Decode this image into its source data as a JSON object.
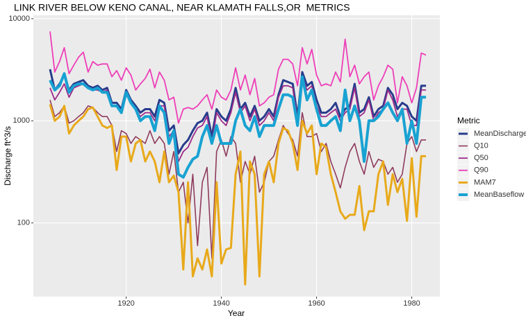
{
  "chart_data": {
    "type": "line",
    "title": "LINK RIVER BELOW KENO CANAL, NEAR KLAMATH FALLS,OR  METRICS",
    "x_label": "Year",
    "y_label": "Discharge ft^3/s",
    "legend_title": "Metric",
    "log_y": true,
    "grid": true,
    "legend": "right",
    "x": [
      1904,
      1905,
      1906,
      1907,
      1908,
      1909,
      1910,
      1911,
      1912,
      1913,
      1914,
      1915,
      1916,
      1917,
      1918,
      1919,
      1920,
      1921,
      1922,
      1923,
      1924,
      1925,
      1926,
      1927,
      1928,
      1929,
      1930,
      1931,
      1932,
      1933,
      1934,
      1935,
      1936,
      1937,
      1938,
      1939,
      1940,
      1941,
      1942,
      1943,
      1944,
      1945,
      1946,
      1947,
      1948,
      1949,
      1950,
      1951,
      1952,
      1953,
      1954,
      1955,
      1956,
      1957,
      1958,
      1959,
      1960,
      1961,
      1962,
      1963,
      1964,
      1965,
      1966,
      1967,
      1968,
      1969,
      1970,
      1971,
      1972,
      1973,
      1974,
      1975,
      1976,
      1977,
      1978,
      1979,
      1980,
      1981,
      1982,
      1983
    ],
    "xlim": [
      1900.5,
      1985.9
    ],
    "xticks": [
      1920,
      1940,
      1960,
      1980
    ],
    "ylim": [
      19,
      10800
    ],
    "yticks": [
      100,
      1000,
      10000
    ],
    "series": [
      {
        "name": "MeanDischarge",
        "color": "#283c8c",
        "values": [
          3200,
          2000,
          2300,
          2800,
          2000,
          2300,
          2400,
          2500,
          2200,
          2100,
          2200,
          2000,
          2100,
          1500,
          1500,
          1300,
          2000,
          1600,
          1400,
          1200,
          1300,
          1300,
          1100,
          1600,
          1500,
          800,
          900,
          480,
          580,
          650,
          800,
          950,
          1000,
          1200,
          700,
          1300,
          1100,
          1000,
          1300,
          2100,
          1300,
          1500,
          1100,
          1400,
          1000,
          1100,
          1300,
          1100,
          1800,
          2500,
          2400,
          2300,
          1100,
          3000,
          2200,
          2400,
          1600,
          1200,
          1200,
          1300,
          1500,
          1100,
          1300,
          1400,
          2300,
          1200,
          1300,
          1700,
          1100,
          1300,
          1400,
          2100,
          1800,
          1300,
          1500,
          1400,
          1100,
          1000,
          2200,
          2200
        ]
      },
      {
        "name": "Q10",
        "color": "#8e3a5c",
        "values": [
          1600,
          1100,
          1200,
          1400,
          950,
          1000,
          1100,
          1200,
          1400,
          1350,
          1200,
          1100,
          1100,
          900,
          500,
          800,
          750,
          600,
          700,
          650,
          600,
          800,
          600,
          700,
          600,
          300,
          500,
          200,
          250,
          100,
          300,
          60,
          250,
          350,
          45,
          500,
          650,
          450,
          700,
          600,
          250,
          400,
          300,
          450,
          200,
          250,
          400,
          450,
          650,
          900,
          750,
          650,
          450,
          1200,
          700,
          700,
          750,
          500,
          600,
          400,
          300,
          220,
          350,
          500,
          600,
          400,
          300,
          500,
          350,
          420,
          400,
          300,
          350,
          250,
          300,
          600,
          700,
          500,
          650,
          650
        ]
      },
      {
        "name": "Q50",
        "color": "#9c2a8a",
        "values": [
          2100,
          1600,
          1900,
          2300,
          1700,
          2100,
          2200,
          2300,
          2100,
          2000,
          2000,
          1900,
          2000,
          1400,
          1400,
          1200,
          1900,
          1500,
          1300,
          1100,
          1200,
          1200,
          1000,
          1400,
          1400,
          700,
          800,
          400,
          500,
          550,
          700,
          850,
          900,
          1100,
          600,
          1200,
          1000,
          900,
          1200,
          1900,
          1200,
          1400,
          1000,
          1300,
          900,
          1000,
          1200,
          1000,
          1700,
          2200,
          2200,
          2100,
          1000,
          2700,
          2000,
          2200,
          1400,
          1100,
          1100,
          1200,
          1300,
          1000,
          1200,
          1300,
          2100,
          1100,
          1200,
          1600,
          1000,
          1200,
          1300,
          2000,
          1600,
          1100,
          1300,
          1300,
          900,
          900,
          2000,
          2000
        ]
      },
      {
        "name": "Q90",
        "color": "#ee3eb8",
        "values": [
          7500,
          3000,
          3800,
          5200,
          2900,
          3500,
          4200,
          4700,
          3000,
          3800,
          3500,
          3600,
          3600,
          2700,
          3100,
          2500,
          3300,
          2800,
          2000,
          2300,
          2600,
          3200,
          2100,
          3000,
          2500,
          1600,
          1700,
          950,
          1300,
          1350,
          1300,
          1400,
          1600,
          1800,
          1300,
          2000,
          1700,
          1600,
          2000,
          3300,
          2000,
          2800,
          1800,
          2600,
          1400,
          1500,
          1700,
          1800,
          3200,
          4000,
          4000,
          3600,
          2200,
          5200,
          3600,
          5000,
          2800,
          2200,
          2300,
          2200,
          3000,
          2400,
          6300,
          2700,
          3500,
          2300,
          2700,
          3000,
          1600,
          2200,
          2700,
          3500,
          3200,
          1500,
          2700,
          2200,
          1500,
          2100,
          4600,
          4400
        ]
      },
      {
        "name": "MAM7",
        "color": "#e8a91a",
        "values": [
          1450,
          1000,
          1100,
          1400,
          750,
          900,
          1000,
          1100,
          1300,
          1350,
          1100,
          900,
          850,
          900,
          330,
          700,
          700,
          400,
          600,
          650,
          400,
          500,
          400,
          250,
          500,
          250,
          290,
          200,
          35,
          250,
          30,
          45,
          35,
          55,
          30,
          250,
          40,
          55,
          57,
          300,
          500,
          25,
          400,
          300,
          30,
          300,
          400,
          250,
          600,
          850,
          800,
          600,
          330,
          1000,
          750,
          900,
          300,
          600,
          550,
          300,
          200,
          130,
          110,
          120,
          120,
          230,
          85,
          130,
          130,
          300,
          400,
          150,
          300,
          200,
          270,
          105,
          430,
          115,
          450,
          450
        ]
      },
      {
        "name": "MeanBaseflow",
        "color": "#18a2d2",
        "values": [
          2500,
          2000,
          2200,
          2900,
          1900,
          2200,
          2300,
          2300,
          2100,
          2000,
          2100,
          1900,
          1900,
          1400,
          1400,
          1200,
          1900,
          1500,
          1300,
          1000,
          1100,
          1100,
          800,
          1400,
          1200,
          600,
          800,
          300,
          280,
          350,
          420,
          450,
          700,
          900,
          600,
          900,
          600,
          600,
          600,
          1000,
          1300,
          900,
          800,
          1100,
          700,
          900,
          900,
          900,
          1300,
          1800,
          1800,
          1700,
          900,
          2700,
          1600,
          2000,
          1300,
          900,
          900,
          1000,
          1100,
          800,
          2000,
          1000,
          1400,
          1000,
          400,
          1000,
          1000,
          1100,
          1300,
          1500,
          1200,
          1000,
          1300,
          600,
          1000,
          600,
          1700,
          1700
        ]
      }
    ]
  }
}
